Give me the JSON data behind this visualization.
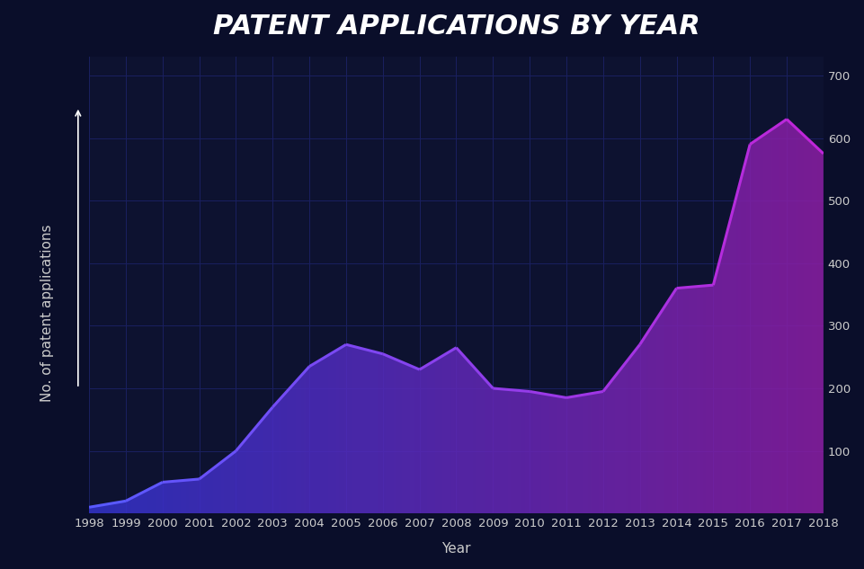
{
  "title": "PATENT APPLICATIONS BY YEAR",
  "xlabel": "Year",
  "ylabel": "No. of patent applications",
  "years": [
    1998,
    1999,
    2000,
    2001,
    2002,
    2003,
    2004,
    2005,
    2006,
    2007,
    2008,
    2009,
    2010,
    2011,
    2012,
    2013,
    2014,
    2015,
    2016,
    2017,
    2018
  ],
  "values": [
    10,
    20,
    50,
    55,
    100,
    170,
    235,
    270,
    255,
    230,
    265,
    200,
    195,
    185,
    195,
    270,
    360,
    365,
    590,
    630,
    575
  ],
  "ylim": [
    0,
    730
  ],
  "yticks": [
    100,
    200,
    300,
    400,
    500,
    600,
    700
  ],
  "background_color": "#0a0e2a",
  "plot_bg_color": "#0d1230",
  "grid_color": "#1a2060",
  "line_color_start": "#4444ff",
  "line_color_end": "#aa22cc",
  "fill_color_start": "#3333cc",
  "fill_color_end": "#882299",
  "title_color": "#ffffff",
  "tick_color": "#cccccc",
  "label_color": "#cccccc",
  "title_fontsize": 22,
  "label_fontsize": 11,
  "tick_fontsize": 9.5
}
